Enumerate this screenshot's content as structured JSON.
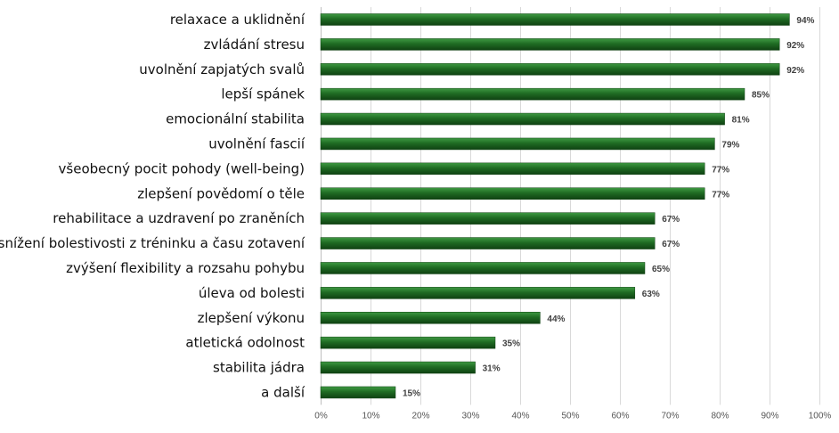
{
  "chart_data": {
    "type": "bar",
    "orientation": "horizontal",
    "categories": [
      "relaxace a uklidnění",
      "zvládání stresu",
      "uvolnění zapjatých svalů",
      "lepší spánek",
      "emocionální stabilita",
      "uvolnění fascií",
      "všeobecný pocit pohody (well-being)",
      "zlepšení povědomí o těle",
      "rehabilitace a uzdravení po zraněních",
      "snížení bolestivosti z tréninku a času zotavení",
      "zvýšení flexibility a rozsahu pohybu",
      "úleva od bolesti",
      "zlepšení výkonu",
      "atletická odolnost",
      "stabilita jádra",
      "a další"
    ],
    "values": [
      94,
      92,
      92,
      85,
      81,
      79,
      77,
      77,
      67,
      67,
      65,
      63,
      44,
      35,
      31,
      15
    ],
    "data_labels": [
      "94%",
      "92%",
      "92%",
      "85%",
      "81%",
      "79%",
      "77%",
      "77%",
      "67%",
      "67%",
      "65%",
      "63%",
      "44%",
      "35%",
      "31%",
      "15%"
    ],
    "x_ticks": [
      "0%",
      "10%",
      "20%",
      "30%",
      "40%",
      "50%",
      "60%",
      "70%",
      "80%",
      "90%",
      "100%"
    ],
    "xlim": [
      0,
      100
    ],
    "title": "",
    "xlabel": "",
    "ylabel": "",
    "grid": "vertical",
    "legend": "none",
    "bar_color": "#1f6b23",
    "bar_highlight": "#3f9a43",
    "bar_shadow": "#0f4212"
  }
}
